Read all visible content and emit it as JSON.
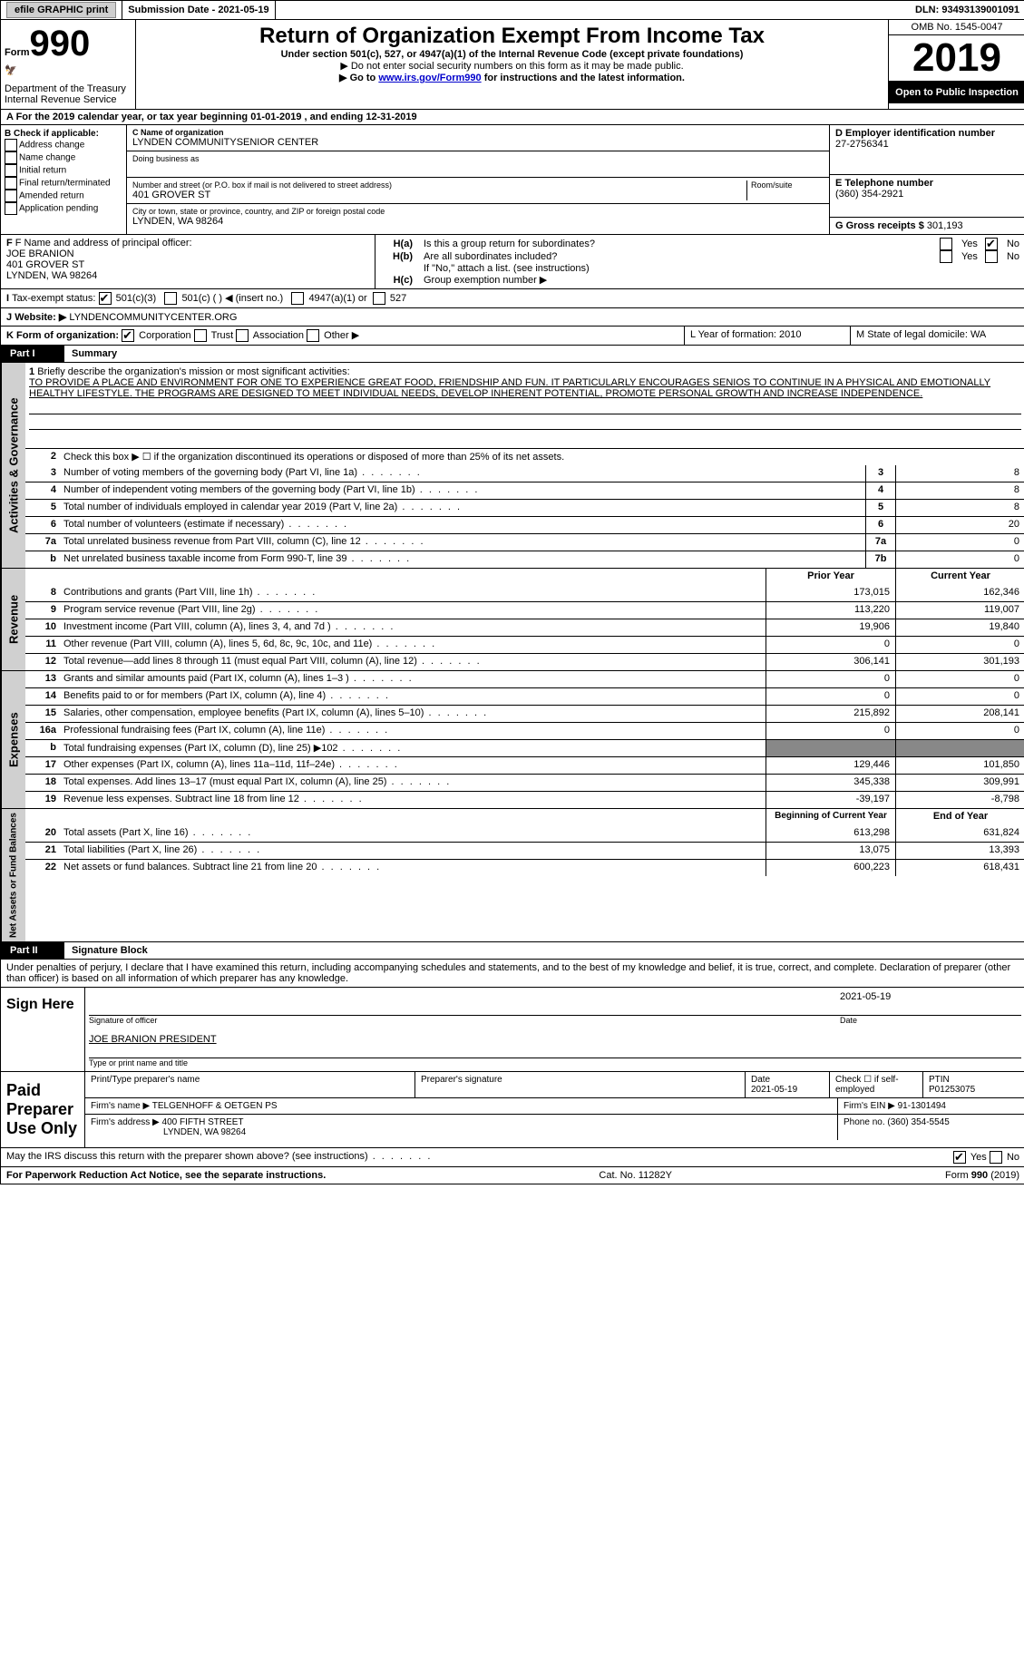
{
  "top": {
    "efile": "efile GRAPHIC print",
    "submission": "Submission Date - 2021-05-19",
    "dln": "DLN: 93493139001091"
  },
  "header": {
    "form_word": "Form",
    "form_num": "990",
    "dept1": "Department of the Treasury",
    "dept2": "Internal Revenue Service",
    "title": "Return of Organization Exempt From Income Tax",
    "subtitle": "Under section 501(c), 527, or 4947(a)(1) of the Internal Revenue Code (except private foundations)",
    "note1": "▶ Do not enter social security numbers on this form as it may be made public.",
    "note2_pre": "▶ Go to ",
    "note2_link": "www.irs.gov/Form990",
    "note2_post": " for instructions and the latest information.",
    "omb": "OMB No. 1545-0047",
    "year": "2019",
    "open": "Open to Public Inspection"
  },
  "period": "A For the 2019 calendar year, or tax year beginning 01-01-2019  , and ending 12-31-2019",
  "box_b": {
    "label": "B Check if applicable:",
    "items": [
      "Address change",
      "Name change",
      "Initial return",
      "Final return/terminated",
      "Amended return",
      "Application pending"
    ]
  },
  "box_c": {
    "name_label": "C Name of organization",
    "name": "LYNDEN COMMUNITYSENIOR CENTER",
    "dba_label": "Doing business as",
    "addr_label": "Number and street (or P.O. box if mail is not delivered to street address)",
    "room_label": "Room/suite",
    "addr": "401 GROVER ST",
    "city_label": "City or town, state or province, country, and ZIP or foreign postal code",
    "city": "LYNDEN, WA  98264"
  },
  "box_d": {
    "label": "D Employer identification number",
    "val": "27-2756341"
  },
  "box_e": {
    "label": "E Telephone number",
    "val": "(360) 354-2921"
  },
  "box_g": {
    "label": "G Gross receipts $",
    "val": "301,193"
  },
  "box_f": {
    "label": "F Name and address of principal officer:",
    "name": "JOE BRANION",
    "addr": "401 GROVER ST",
    "city": "LYNDEN, WA  98264"
  },
  "box_h": {
    "ha": "Is this a group return for subordinates?",
    "hb": "Are all subordinates included?",
    "hnote": "If \"No,\" attach a list. (see instructions)",
    "hc": "Group exemption number ▶"
  },
  "tax_status": {
    "label": "Tax-exempt status:",
    "o1": "501(c)(3)",
    "o2": "501(c) (  ) ◀ (insert no.)",
    "o3": "4947(a)(1) or",
    "o4": "527"
  },
  "website": {
    "label": "Website: ▶",
    "val": "LYNDENCOMMUNITYCENTER.ORG"
  },
  "box_k": {
    "label": "K Form of organization:",
    "corp": "Corporation",
    "trust": "Trust",
    "assoc": "Association",
    "other": "Other ▶"
  },
  "box_l": "L Year of formation: 2010",
  "box_m": "M State of legal domicile: WA",
  "part1": {
    "num": "Part I",
    "title": "Summary"
  },
  "summary": {
    "l1_label": "Briefly describe the organization's mission or most significant activities:",
    "l1_text": "TO PROVIDE A PLACE AND ENVIRONMENT FOR ONE TO EXPERIENCE GREAT FOOD, FRIENDSHIP AND FUN. IT PARTICULARLY ENCOURAGES SENIOS TO CONTINUE IN A PHYSICAL AND EMOTIONALLY HEALTHY LIFESTYLE. THE PROGRAMS ARE DESIGNED TO MEET INDIVIDUAL NEEDS, DEVELOP INHERENT POTENTIAL, PROMOTE PERSONAL GROWTH AND INCREASE INDEPENDENCE.",
    "l2": "Check this box ▶ ☐ if the organization discontinued its operations or disposed of more than 25% of its net assets.",
    "rows_a": [
      {
        "n": "3",
        "d": "Number of voting members of the governing body (Part VI, line 1a)",
        "c": "3",
        "v": "8"
      },
      {
        "n": "4",
        "d": "Number of independent voting members of the governing body (Part VI, line 1b)",
        "c": "4",
        "v": "8"
      },
      {
        "n": "5",
        "d": "Total number of individuals employed in calendar year 2019 (Part V, line 2a)",
        "c": "5",
        "v": "8"
      },
      {
        "n": "6",
        "d": "Total number of volunteers (estimate if necessary)",
        "c": "6",
        "v": "20"
      },
      {
        "n": "7a",
        "d": "Total unrelated business revenue from Part VIII, column (C), line 12",
        "c": "7a",
        "v": "0"
      },
      {
        "n": "b",
        "d": "Net unrelated business taxable income from Form 990-T, line 39",
        "c": "7b",
        "v": "0"
      }
    ],
    "head_prior": "Prior Year",
    "head_curr": "Current Year",
    "revenue": [
      {
        "n": "8",
        "d": "Contributions and grants (Part VIII, line 1h)",
        "p": "173,015",
        "c": "162,346"
      },
      {
        "n": "9",
        "d": "Program service revenue (Part VIII, line 2g)",
        "p": "113,220",
        "c": "119,007"
      },
      {
        "n": "10",
        "d": "Investment income (Part VIII, column (A), lines 3, 4, and 7d )",
        "p": "19,906",
        "c": "19,840"
      },
      {
        "n": "11",
        "d": "Other revenue (Part VIII, column (A), lines 5, 6d, 8c, 9c, 10c, and 11e)",
        "p": "0",
        "c": "0"
      },
      {
        "n": "12",
        "d": "Total revenue—add lines 8 through 11 (must equal Part VIII, column (A), line 12)",
        "p": "306,141",
        "c": "301,193"
      }
    ],
    "expenses": [
      {
        "n": "13",
        "d": "Grants and similar amounts paid (Part IX, column (A), lines 1–3 )",
        "p": "0",
        "c": "0"
      },
      {
        "n": "14",
        "d": "Benefits paid to or for members (Part IX, column (A), line 4)",
        "p": "0",
        "c": "0"
      },
      {
        "n": "15",
        "d": "Salaries, other compensation, employee benefits (Part IX, column (A), lines 5–10)",
        "p": "215,892",
        "c": "208,141"
      },
      {
        "n": "16a",
        "d": "Professional fundraising fees (Part IX, column (A), line 11e)",
        "p": "0",
        "c": "0"
      },
      {
        "n": "b",
        "d": "Total fundraising expenses (Part IX, column (D), line 25) ▶102",
        "p": "GRAY",
        "c": "GRAY"
      },
      {
        "n": "17",
        "d": "Other expenses (Part IX, column (A), lines 11a–11d, 11f–24e)",
        "p": "129,446",
        "c": "101,850"
      },
      {
        "n": "18",
        "d": "Total expenses. Add lines 13–17 (must equal Part IX, column (A), line 25)",
        "p": "345,338",
        "c": "309,991"
      },
      {
        "n": "19",
        "d": "Revenue less expenses. Subtract line 18 from line 12",
        "p": "-39,197",
        "c": "-8,798"
      }
    ],
    "head_begin": "Beginning of Current Year",
    "head_end": "End of Year",
    "netassets": [
      {
        "n": "20",
        "d": "Total assets (Part X, line 16)",
        "p": "613,298",
        "c": "631,824"
      },
      {
        "n": "21",
        "d": "Total liabilities (Part X, line 26)",
        "p": "13,075",
        "c": "13,393"
      },
      {
        "n": "22",
        "d": "Net assets or fund balances. Subtract line 21 from line 20",
        "p": "600,223",
        "c": "618,431"
      }
    ]
  },
  "vert": {
    "gov": "Activities & Governance",
    "rev": "Revenue",
    "exp": "Expenses",
    "net": "Net Assets or Fund Balances"
  },
  "part2": {
    "num": "Part II",
    "title": "Signature Block"
  },
  "sig": {
    "perjury": "Under penalties of perjury, I declare that I have examined this return, including accompanying schedules and statements, and to the best of my knowledge and belief, it is true, correct, and complete. Declaration of preparer (other than officer) is based on all information of which preparer has any knowledge.",
    "sign_here": "Sign Here",
    "date": "2021-05-19",
    "sig_officer": "Signature of officer",
    "date_label": "Date",
    "name": "JOE BRANION  PRESIDENT",
    "name_label": "Type or print name and title",
    "paid": "Paid Preparer Use Only",
    "pt_name_label": "Print/Type preparer's name",
    "sig_label": "Preparer's signature",
    "prep_date_label": "Date",
    "prep_date": "2021-05-19",
    "check_label": "Check ☐ if self-employed",
    "ptin_label": "PTIN",
    "ptin": "P01253075",
    "firm_name_label": "Firm's name   ▶",
    "firm_name": "TELGENHOFF & OETGEN PS",
    "firm_ein_label": "Firm's EIN ▶",
    "firm_ein": "91-1301494",
    "firm_addr_label": "Firm's address ▶",
    "firm_addr": "400 FIFTH STREET",
    "firm_city": "LYNDEN, WA  98264",
    "firm_phone_label": "Phone no.",
    "firm_phone": "(360) 354-5545",
    "discuss": "May the IRS discuss this return with the preparer shown above? (see instructions)"
  },
  "footer": {
    "pra": "For Paperwork Reduction Act Notice, see the separate instructions.",
    "cat": "Cat. No. 11282Y",
    "form": "Form 990 (2019)"
  },
  "yes": "Yes",
  "no": "No",
  "colors": {
    "black": "#000000",
    "link": "#0000cc",
    "gray_bg": "#d0d0d0",
    "dark_gray": "#888888"
  }
}
